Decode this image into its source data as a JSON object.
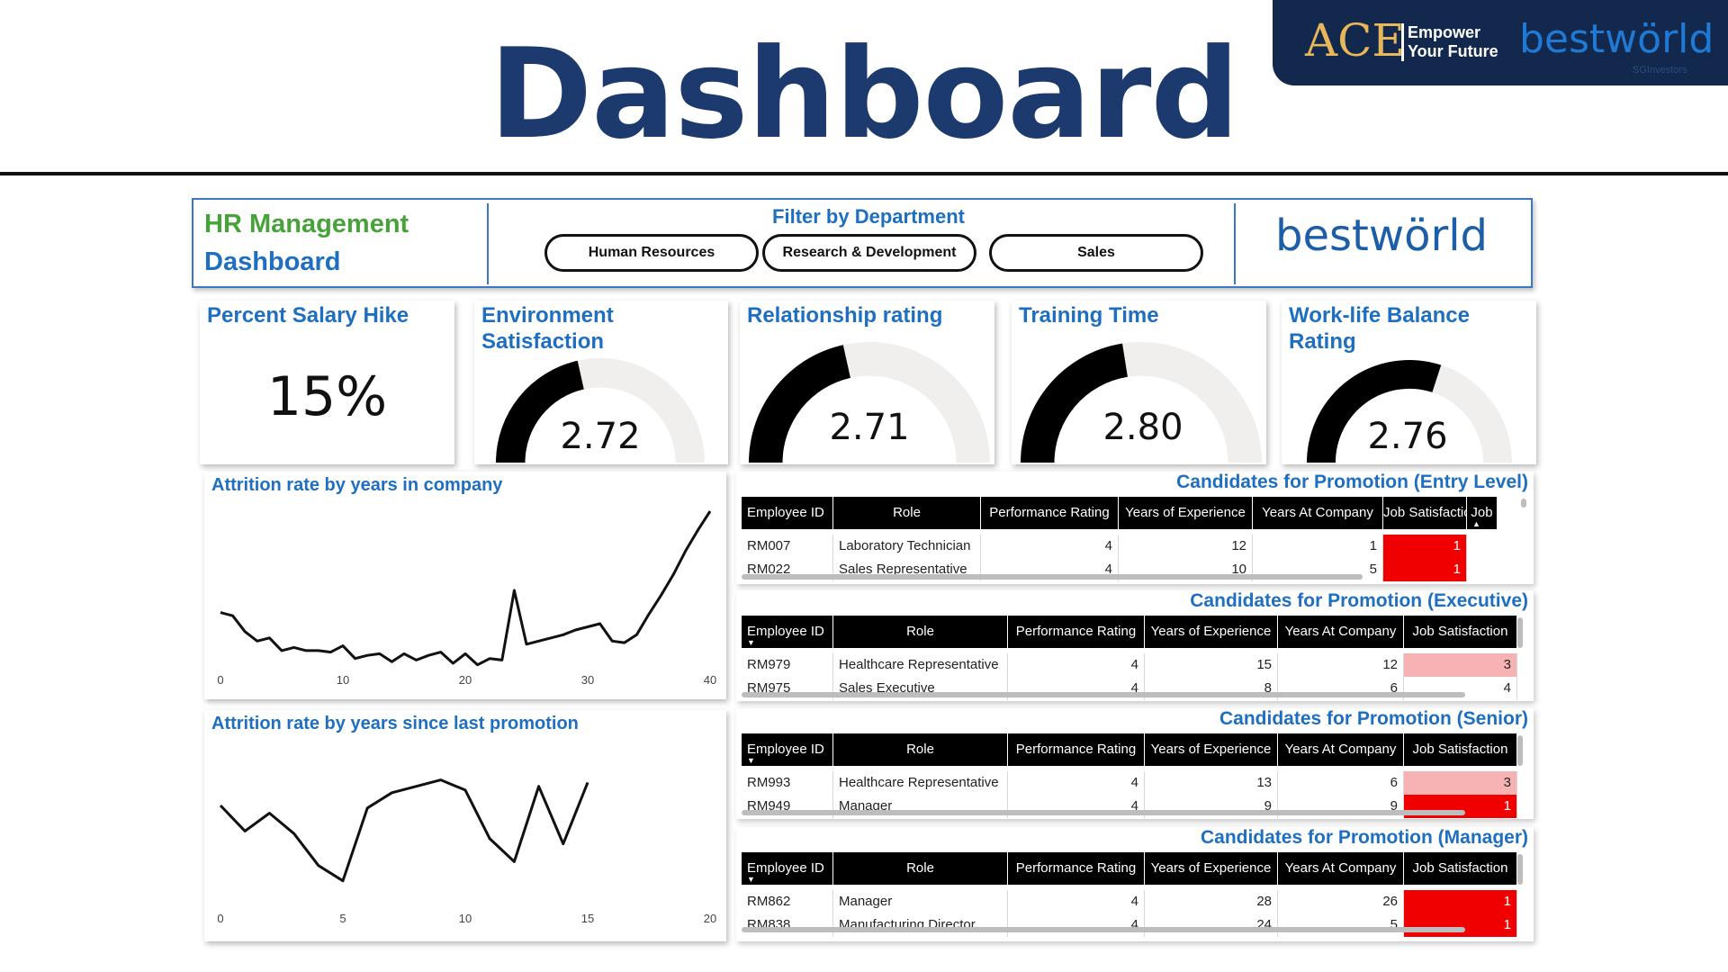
{
  "slide": {
    "title": "Dashboard",
    "banner": {
      "ace": "ACE",
      "tagline": "Empower\nYour Future",
      "brand": "bestwörld",
      "brand_sub": "SGInvestors"
    }
  },
  "header": {
    "title_line1": "HR Management",
    "title_line2": "Dashboard",
    "filter_label": "Filter by Department",
    "filters": [
      "Human Resources",
      "Research & Development",
      "Sales"
    ],
    "logo": "bestwörld"
  },
  "kpis": {
    "salary_hike": {
      "title": "Percent Salary Hike",
      "value": "15%"
    },
    "gauges": [
      {
        "title": "Environment Satisfaction",
        "value": "2.72",
        "fraction": 0.43
      },
      {
        "title": "Relationship rating",
        "value": "2.71",
        "fraction": 0.43
      },
      {
        "title": "Training Time",
        "value": "2.80",
        "fraction": 0.45
      },
      {
        "title": "Work-life Balance Rating",
        "value": "2.76",
        "fraction": 0.6
      }
    ]
  },
  "charts": {
    "years_in_company": {
      "title": "Attrition rate by years in company",
      "x_ticks": [
        "0",
        "10",
        "20",
        "30",
        "40"
      ]
    },
    "since_promotion": {
      "title": "Attrition rate by years since last promotion",
      "x_ticks": [
        "0",
        "5",
        "10",
        "15",
        "20"
      ]
    }
  },
  "chart_data": [
    {
      "type": "line",
      "title": "Attrition rate by years in company",
      "xlim": [
        0,
        40
      ],
      "ylim": [
        0,
        1
      ],
      "x": [
        0,
        1,
        2,
        3,
        4,
        5,
        6,
        7,
        8,
        9,
        10,
        11,
        12,
        13,
        14,
        15,
        16,
        17,
        18,
        19,
        20,
        21,
        22,
        23,
        24,
        25,
        26,
        27,
        28,
        29,
        30,
        31,
        32,
        33,
        34,
        35,
        36,
        37,
        38,
        39,
        40
      ],
      "values": [
        0.36,
        0.34,
        0.24,
        0.18,
        0.2,
        0.12,
        0.14,
        0.12,
        0.12,
        0.11,
        0.15,
        0.07,
        0.09,
        0.1,
        0.05,
        0.1,
        0.06,
        0.09,
        0.11,
        0.04,
        0.1,
        0.03,
        0.07,
        0.06,
        0.5,
        0.16,
        0.18,
        0.2,
        0.22,
        0.25,
        0.27,
        0.29,
        0.18,
        0.17,
        0.22,
        0.35,
        0.47,
        0.6,
        0.75,
        0.88,
        1.0
      ]
    },
    {
      "type": "line",
      "title": "Attrition rate by years since last promotion",
      "xlim": [
        0,
        20
      ],
      "ylim": [
        0,
        1
      ],
      "x": [
        0,
        1,
        2,
        3,
        4,
        5,
        6,
        7,
        8,
        9,
        10,
        11,
        12,
        13,
        14,
        15
      ],
      "values": [
        0.62,
        0.42,
        0.56,
        0.4,
        0.15,
        0.03,
        0.6,
        0.72,
        0.77,
        0.82,
        0.74,
        0.36,
        0.18,
        0.77,
        0.32,
        0.8
      ]
    }
  ],
  "tables": {
    "columns": [
      "Employee ID",
      "Role",
      "Performance Rating",
      "Years of Experience",
      "Years At Company",
      "Job Satisfaction"
    ],
    "entry": {
      "title": "Candidates for Promotion (Entry Level)",
      "extra_col": "Job",
      "rows": [
        {
          "id": "RM007",
          "role": "Laboratory Technician",
          "perf": "4",
          "exp": "12",
          "company": "1",
          "js": "1",
          "js_color": "#f00000"
        },
        {
          "id": "RM022",
          "role": "Sales Representative",
          "perf": "4",
          "exp": "10",
          "company": "5",
          "js": "1",
          "js_color": "#f00000"
        }
      ]
    },
    "executive": {
      "title": "Candidates for Promotion (Executive)",
      "rows": [
        {
          "id": "RM979",
          "role": "Healthcare Representative",
          "perf": "4",
          "exp": "15",
          "company": "12",
          "js": "3",
          "js_color": "#f7b3b3"
        },
        {
          "id": "RM975",
          "role": "Sales Executive",
          "perf": "4",
          "exp": "8",
          "company": "6",
          "js": "4",
          "js_color": "#ffffff"
        }
      ]
    },
    "senior": {
      "title": "Candidates for Promotion (Senior)",
      "rows": [
        {
          "id": "RM993",
          "role": "Healthcare Representative",
          "perf": "4",
          "exp": "13",
          "company": "6",
          "js": "3",
          "js_color": "#f7b3b3"
        },
        {
          "id": "RM949",
          "role": "Manager",
          "perf": "4",
          "exp": "9",
          "company": "9",
          "js": "1",
          "js_color": "#f00000"
        }
      ]
    },
    "manager": {
      "title": "Candidates for Promotion (Manager)",
      "rows": [
        {
          "id": "RM862",
          "role": "Manager",
          "perf": "4",
          "exp": "28",
          "company": "26",
          "js": "1",
          "js_color": "#f00000"
        },
        {
          "id": "RM838",
          "role": "Manufacturing Director",
          "perf": "4",
          "exp": "24",
          "company": "5",
          "js": "1",
          "js_color": "#f00000"
        }
      ]
    }
  },
  "colors": {
    "title_navy": "#1c3a6e",
    "accent_blue": "#1f6fc1",
    "accent_green": "#47a23a",
    "gauge_fill": "#000000",
    "gauge_track": "#f0efee",
    "low_satisfaction": "#f00000",
    "mid_satisfaction": "#f7b3b3"
  }
}
